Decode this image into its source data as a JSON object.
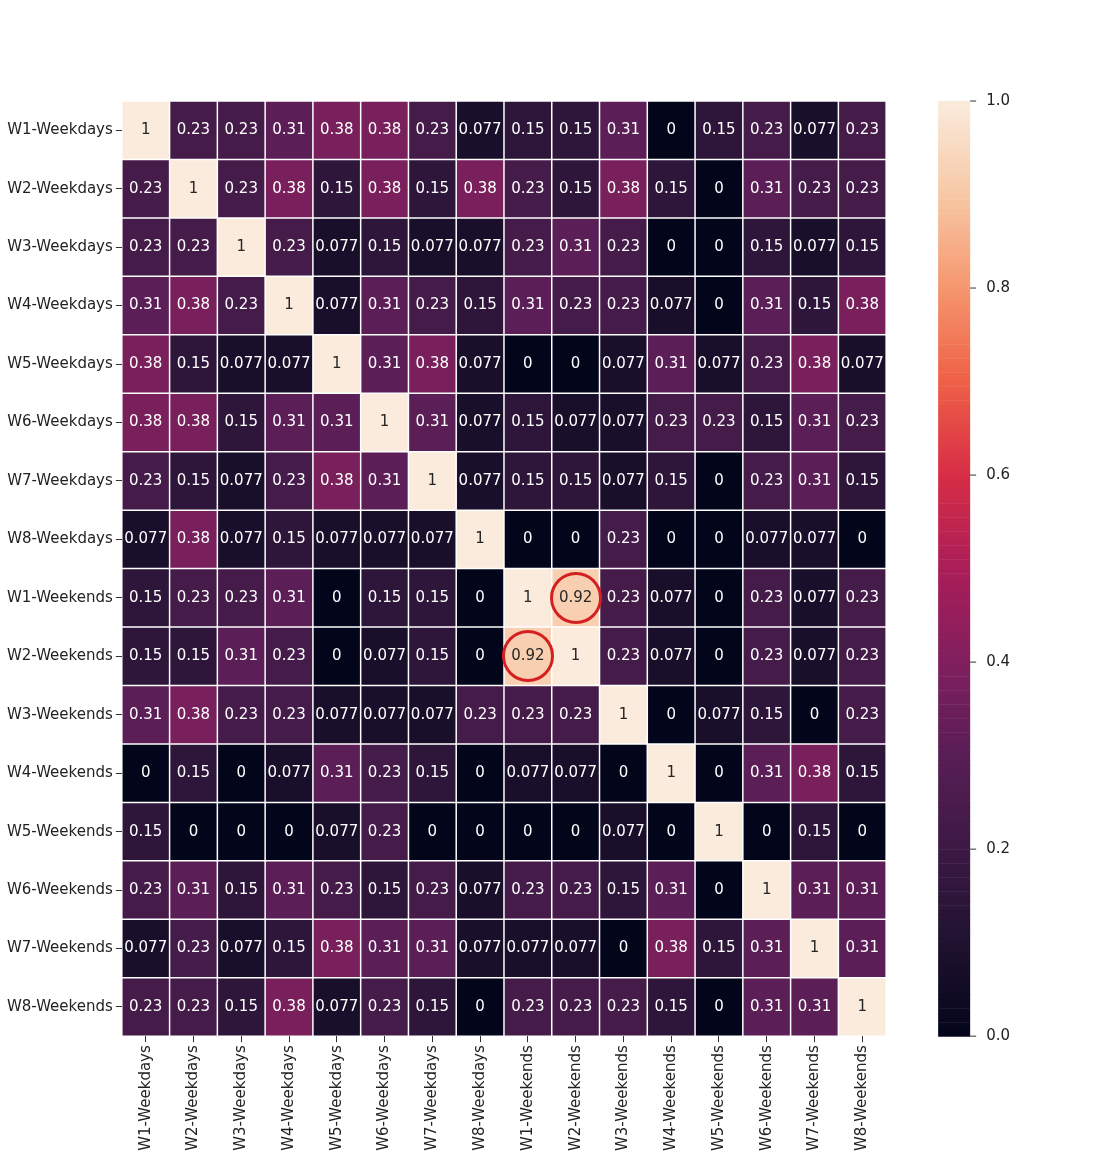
{
  "chart_data": {
    "type": "heatmap",
    "categories": [
      "W1-Weekdays",
      "W2-Weekdays",
      "W3-Weekdays",
      "W4-Weekdays",
      "W5-Weekdays",
      "W6-Weekdays",
      "W7-Weekdays",
      "W8-Weekdays",
      "W1-Weekends",
      "W2-Weekends",
      "W3-Weekends",
      "W4-Weekends",
      "W5-Weekends",
      "W6-Weekends",
      "W7-Weekends",
      "W8-Weekends"
    ],
    "y_categories": [
      "W1-Weekdays",
      "W2-Weekdays",
      "W3-Weekdays",
      "W4-Weekdays",
      "W5-Weekdays",
      "W6-Weekdays",
      "W7-Weekdays",
      "W8-Weekdays",
      "W1-Weekends",
      "W2-Weekends",
      "W3-Weekends",
      "W4-Weekends",
      "W5-Weekends",
      "W6-Weekends",
      "W7-Weekends",
      "W8-Weekends"
    ],
    "cells": [
      [
        1,
        0.23,
        0.23,
        0.31,
        0.38,
        0.38,
        0.23,
        0.077,
        0.15,
        0.15,
        0.31,
        0,
        0.15,
        0.23,
        0.077,
        0.23
      ],
      [
        0.23,
        1,
        0.23,
        0.38,
        0.15,
        0.38,
        0.15,
        0.38,
        0.23,
        0.15,
        0.38,
        0.15,
        0,
        0.31,
        0.23,
        0.23
      ],
      [
        0.23,
        0.23,
        1,
        0.23,
        0.077,
        0.15,
        0.077,
        0.077,
        0.23,
        0.31,
        0.23,
        0,
        0,
        0.15,
        0.077,
        0.15
      ],
      [
        0.31,
        0.38,
        0.23,
        1,
        0.077,
        0.31,
        0.23,
        0.15,
        0.31,
        0.23,
        0.23,
        0.077,
        0,
        0.31,
        0.15,
        0.38
      ],
      [
        0.38,
        0.15,
        0.077,
        0.077,
        1,
        0.31,
        0.38,
        0.077,
        0,
        0,
        0.077,
        0.31,
        0.077,
        0.23,
        0.38,
        0.077
      ],
      [
        0.38,
        0.38,
        0.15,
        0.31,
        0.31,
        1,
        0.31,
        0.077,
        0.15,
        0.077,
        0.077,
        0.23,
        0.23,
        0.15,
        0.31,
        0.23
      ],
      [
        0.23,
        0.15,
        0.077,
        0.23,
        0.38,
        0.31,
        1,
        0.077,
        0.15,
        0.15,
        0.077,
        0.15,
        0,
        0.23,
        0.31,
        0.15
      ],
      [
        0.077,
        0.38,
        0.077,
        0.15,
        0.077,
        0.077,
        0.077,
        1,
        0,
        0,
        0.23,
        0,
        0,
        0.077,
        0.077,
        0
      ],
      [
        0.15,
        0.23,
        0.23,
        0.31,
        0,
        0.15,
        0.15,
        0,
        1,
        0.92,
        0.23,
        0.077,
        0,
        0.23,
        0.077,
        0.23
      ],
      [
        0.15,
        0.15,
        0.31,
        0.23,
        0,
        0.077,
        0.15,
        0,
        0.92,
        1,
        0.23,
        0.077,
        0,
        0.23,
        0.077,
        0.23
      ],
      [
        0.31,
        0.38,
        0.23,
        0.23,
        0.077,
        0.077,
        0.077,
        0.23,
        0.23,
        0.23,
        1,
        0,
        0.077,
        0.15,
        0,
        0.23
      ],
      [
        0,
        0.15,
        0,
        0.077,
        0.31,
        0.23,
        0.15,
        0,
        0.077,
        0.077,
        0,
        1,
        0,
        0.31,
        0.38,
        0.15
      ],
      [
        0.15,
        0,
        0,
        0,
        0.077,
        0.23,
        0,
        0,
        0,
        0,
        0.077,
        0,
        1,
        0,
        0.15,
        0
      ],
      [
        0.23,
        0.31,
        0.15,
        0.31,
        0.23,
        0.15,
        0.23,
        0.077,
        0.23,
        0.23,
        0.15,
        0.31,
        0,
        1,
        0.31,
        0.31
      ],
      [
        0.077,
        0.23,
        0.077,
        0.15,
        0.38,
        0.31,
        0.31,
        0.077,
        0.077,
        0.077,
        0,
        0.38,
        0.15,
        0.31,
        1,
        0.31
      ],
      [
        0.23,
        0.23,
        0.15,
        0.38,
        0.077,
        0.23,
        0.15,
        0,
        0.23,
        0.23,
        0.23,
        0.15,
        0,
        0.31,
        0.31,
        1
      ]
    ],
    "clim": [
      0,
      1
    ],
    "cticks": [
      {
        "value": 0,
        "label": "0.0"
      },
      0.2,
      0.4,
      0.6,
      0.8,
      {
        "value": 1,
        "label": "1.0"
      }
    ],
    "data_labels": true
  }
}
